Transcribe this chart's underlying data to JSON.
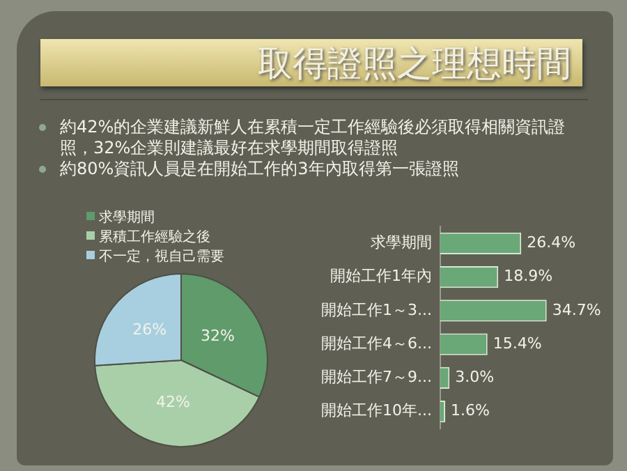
{
  "chart_data": [
    {
      "type": "pie",
      "title": "取得證照之理想時間",
      "annotations": [
        "約42%的企業建議新鮮人在累積一定工作經驗後必須取得相關資訊證照，32%企業則建議最好在求學期間取得證照",
        "約80%資訊人員是在開始工作的3年內取得第一張證照"
      ],
      "categories": [
        "求學期間",
        "累積工作經驗之後",
        "不一定，視自己需要"
      ],
      "values": [
        32,
        42,
        26
      ],
      "colors": [
        "#5f9b6b",
        "#a9cfa9",
        "#a8cfdf"
      ],
      "value_labels": [
        "32%",
        "42%",
        "26%"
      ],
      "legend": "top left"
    },
    {
      "type": "bar",
      "orientation": "horizontal",
      "categories": [
        "求學期間",
        "開始工作1年內",
        "開始工作1～3...",
        "開始工作4～6...",
        "開始工作7～9...",
        "開始工作10年..."
      ],
      "values": [
        26.4,
        18.9,
        34.7,
        15.4,
        3.0,
        1.6
      ],
      "color": "#6aa878",
      "value_labels": [
        "26.4%",
        "18.9%",
        "34.7%",
        "15.4%",
        "3.0%",
        "1.6%"
      ]
    }
  ]
}
